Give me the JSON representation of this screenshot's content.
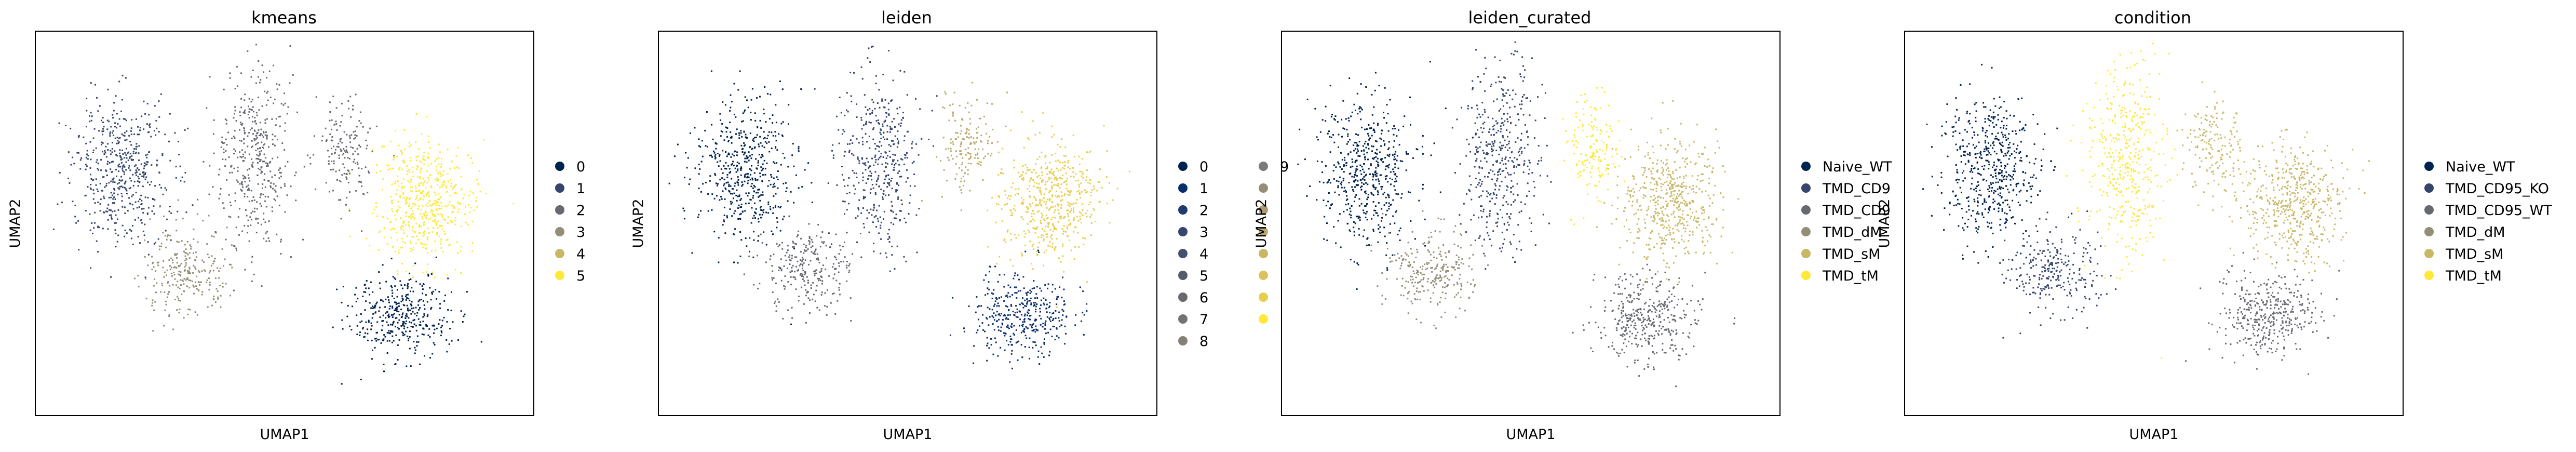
{
  "chart_data": [
    {
      "type": "scatter",
      "title": "kmeans",
      "xlabel": "UMAP1",
      "ylabel": "UMAP2",
      "legend": {
        "placement": "right",
        "entries": [
          {
            "label": "0",
            "color": "#00224e"
          },
          {
            "label": "1",
            "color": "#35456c"
          },
          {
            "label": "2",
            "color": "#666970"
          },
          {
            "label": "3",
            "color": "#948e77"
          },
          {
            "label": "4",
            "color": "#c8b866"
          },
          {
            "label": "5",
            "color": "#fee838"
          }
        ]
      }
    },
    {
      "type": "scatter",
      "title": "leiden",
      "xlabel": "UMAP1",
      "ylabel": "UMAP2",
      "legend": {
        "placement": "right",
        "columns": 2,
        "entries": [
          {
            "label": "0",
            "color": "#00224e"
          },
          {
            "label": "1",
            "color": "#0b2d6b"
          },
          {
            "label": "2",
            "color": "#22396d"
          },
          {
            "label": "3",
            "color": "#35456c"
          },
          {
            "label": "4",
            "color": "#45506d"
          },
          {
            "label": "5",
            "color": "#555b6e"
          },
          {
            "label": "6",
            "color": "#666970"
          },
          {
            "label": "7",
            "color": "#747372"
          },
          {
            "label": "8",
            "color": "#848076"
          },
          {
            "label": "9",
            "color": "#7a7a78"
          },
          {
            "label": "",
            "color": "#948e77"
          },
          {
            "label": "",
            "color": "#a79c73"
          },
          {
            "label": "",
            "color": "#b8a96e"
          },
          {
            "label": "",
            "color": "#c8b866"
          },
          {
            "label": "",
            "color": "#dac35a"
          },
          {
            "label": "",
            "color": "#e8ce4c"
          },
          {
            "label": "",
            "color": "#fee838"
          }
        ]
      }
    },
    {
      "type": "scatter",
      "title": "leiden_curated",
      "xlabel": "UMAP1",
      "ylabel": "UMAP2",
      "legend": {
        "placement": "right",
        "entries": [
          {
            "label": "Naive_WT",
            "color": "#00224e"
          },
          {
            "label": "TMD_CD9",
            "color": "#35456c"
          },
          {
            "label": "TMD_CD9",
            "color": "#666970"
          },
          {
            "label": "TMD_dM",
            "color": "#948e77"
          },
          {
            "label": "TMD_sM",
            "color": "#c8b866"
          },
          {
            "label": "TMD_tM",
            "color": "#fee838"
          }
        ]
      }
    },
    {
      "type": "scatter",
      "title": "condition",
      "xlabel": "UMAP1",
      "ylabel": "UMAP2",
      "legend": {
        "placement": "right",
        "entries": [
          {
            "label": "Naive_WT",
            "color": "#00224e"
          },
          {
            "label": "TMD_CD95_KO",
            "color": "#35456c"
          },
          {
            "label": "TMD_CD95_WT",
            "color": "#666970"
          },
          {
            "label": "TMD_dM",
            "color": "#948e77"
          },
          {
            "label": "TMD_sM",
            "color": "#c8b866"
          },
          {
            "label": "TMD_tM",
            "color": "#fee838"
          }
        ]
      }
    }
  ]
}
